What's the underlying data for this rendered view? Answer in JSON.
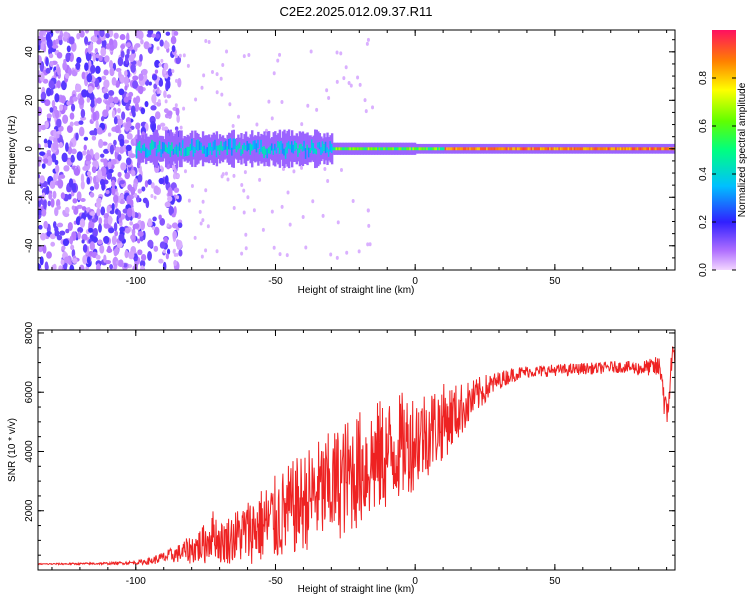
{
  "figure_title": "C2E2.2025.012.09.37.R11",
  "colors": {
    "snr_line": "#ee2222",
    "axis": "#000000",
    "low_amplitude": "#f0e0ff",
    "background": "#ffffff"
  },
  "chart_data": [
    {
      "type": "heatmap",
      "xlabel": "Height of straight line (km)",
      "ylabel": "Frequency (Hz)",
      "xlim": [
        -135,
        93
      ],
      "ylim": [
        -50,
        49
      ],
      "xticks": [
        -100,
        -50,
        0,
        50
      ],
      "yticks": [
        -40,
        -20,
        0,
        20,
        40
      ],
      "grid": false,
      "colormap": "rainbow (magenta to red)",
      "description_values": {
        "carrier_frequency_hz": 0,
        "noise_spread_region_km": [
          -135,
          -90
        ],
        "colorbar_label": "Normalized spectral amplitude"
      },
      "colorbar": {
        "label": "Normalized spectral amplitude",
        "range": [
          0,
          1
        ],
        "ticks": [
          0.0,
          0.2,
          0.4,
          0.6,
          0.8
        ]
      }
    },
    {
      "type": "line",
      "xlabel": "Height of straight line (km)",
      "ylabel": "SNR (10 * v/v)",
      "xlim": [
        -135,
        93
      ],
      "ylim": [
        0,
        8100
      ],
      "xticks": [
        -100,
        -50,
        0,
        50
      ],
      "yticks": [
        2000,
        4000,
        6000,
        8000
      ],
      "grid": false,
      "series": [
        {
          "x": [
            -135,
            -120,
            -110,
            -100,
            -95,
            -90,
            -85,
            -80,
            -75,
            -72,
            -70,
            -65,
            -60,
            -55,
            -50,
            -45,
            -40,
            -35,
            -30,
            -25,
            -20,
            -15,
            -10,
            -5,
            0,
            5,
            10,
            15,
            20,
            25,
            30,
            35,
            40,
            45,
            50,
            55,
            60,
            65,
            70,
            75,
            80,
            85,
            88,
            90,
            92,
            93
          ],
          "y": [
            200,
            210,
            220,
            250,
            300,
            420,
            550,
            700,
            900,
            1300,
            900,
            1100,
            1300,
            1500,
            1700,
            2000,
            2300,
            2600,
            2800,
            3100,
            3400,
            3700,
            3900,
            4200,
            4400,
            4700,
            5000,
            5300,
            5700,
            6100,
            6400,
            6600,
            6700,
            6700,
            6750,
            6750,
            6800,
            6800,
            6850,
            6850,
            6800,
            6850,
            6800,
            5000,
            7200,
            7400
          ],
          "spread": [
            20,
            30,
            40,
            60,
            120,
            200,
            300,
            500,
            700,
            800,
            700,
            900,
            1100,
            1300,
            1500,
            1600,
            1700,
            1800,
            1900,
            2000,
            2000,
            2000,
            1900,
            1800,
            1700,
            1500,
            1300,
            1000,
            700,
            500,
            300,
            250,
            200,
            200,
            200,
            200,
            200,
            200,
            200,
            200,
            250,
            300,
            500,
            700,
            500,
            400
          ]
        }
      ]
    }
  ]
}
